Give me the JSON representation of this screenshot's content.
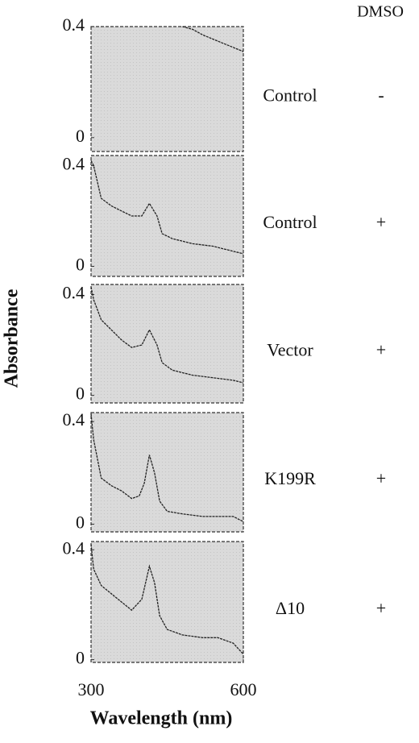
{
  "ylabel": "Absorbance",
  "xlabel": "Wavelength (nm)",
  "column_header": "DMSO",
  "chart_data": [
    {
      "type": "line",
      "label": "Control",
      "dmso": "-",
      "xlim": [
        300,
        600
      ],
      "ylim": [
        -0.05,
        0.4
      ],
      "yticks": [
        0,
        0.4
      ],
      "x": [
        480,
        500,
        520,
        540,
        560,
        580,
        600
      ],
      "values": [
        0.4,
        0.39,
        0.37,
        0.355,
        0.34,
        0.325,
        0.31
      ]
    },
    {
      "type": "line",
      "label": "Control",
      "dmso": "+",
      "xlim": [
        300,
        600
      ],
      "ylim": [
        -0.04,
        0.44
      ],
      "yticks": [
        0,
        0.4
      ],
      "x": [
        300,
        305,
        320,
        340,
        360,
        380,
        400,
        415,
        430,
        440,
        460,
        500,
        540,
        580,
        600
      ],
      "values": [
        0.42,
        0.4,
        0.27,
        0.24,
        0.22,
        0.2,
        0.2,
        0.25,
        0.2,
        0.13,
        0.11,
        0.09,
        0.08,
        0.06,
        0.05
      ]
    },
    {
      "type": "line",
      "label": "Vector",
      "dmso": "+",
      "xlim": [
        300,
        600
      ],
      "ylim": [
        -0.03,
        0.44
      ],
      "yticks": [
        0,
        0.4
      ],
      "x": [
        300,
        305,
        320,
        340,
        360,
        380,
        400,
        415,
        430,
        440,
        460,
        500,
        540,
        580,
        600
      ],
      "values": [
        0.43,
        0.38,
        0.3,
        0.26,
        0.22,
        0.19,
        0.2,
        0.26,
        0.2,
        0.13,
        0.1,
        0.08,
        0.07,
        0.06,
        0.05
      ]
    },
    {
      "type": "line",
      "label": "K199R",
      "dmso": "+",
      "xlim": [
        300,
        600
      ],
      "ylim": [
        -0.03,
        0.435
      ],
      "yticks": [
        0,
        0.4
      ],
      "x": [
        300,
        305,
        320,
        340,
        360,
        380,
        395,
        405,
        415,
        425,
        435,
        450,
        480,
        520,
        550,
        580,
        600
      ],
      "values": [
        0.43,
        0.33,
        0.18,
        0.15,
        0.13,
        0.1,
        0.11,
        0.16,
        0.27,
        0.2,
        0.09,
        0.05,
        0.04,
        0.03,
        0.03,
        0.03,
        0.01
      ]
    },
    {
      "type": "line",
      "label": "Δ10",
      "dmso": "+",
      "xlim": [
        300,
        600
      ],
      "ylim": [
        -0.01,
        0.43
      ],
      "yticks": [
        0,
        0.4
      ],
      "xticks": [
        300,
        600
      ],
      "x": [
        300,
        305,
        320,
        340,
        360,
        380,
        400,
        415,
        425,
        435,
        450,
        480,
        520,
        550,
        580,
        600
      ],
      "values": [
        0.42,
        0.33,
        0.27,
        0.24,
        0.21,
        0.18,
        0.22,
        0.34,
        0.28,
        0.16,
        0.11,
        0.09,
        0.08,
        0.08,
        0.06,
        0.02
      ]
    }
  ]
}
